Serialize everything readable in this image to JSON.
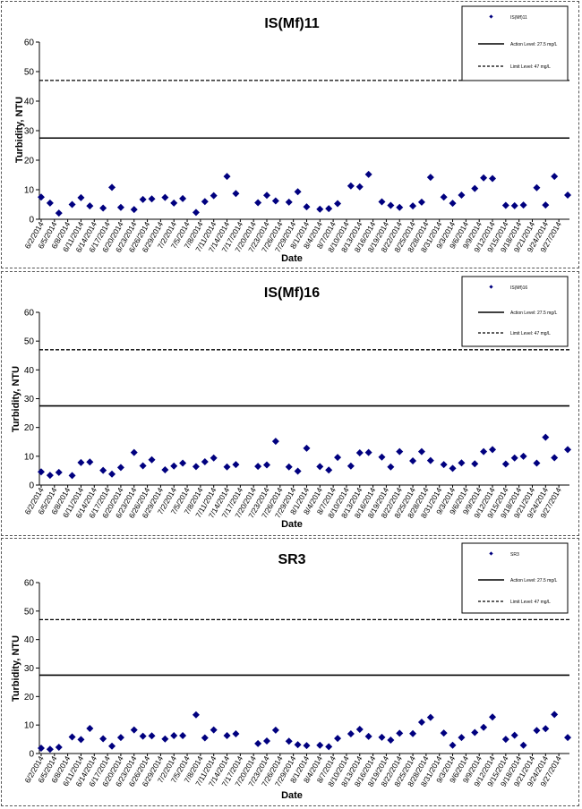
{
  "chart_data": [
    {
      "type": "scatter",
      "title": "IS(Mf)11",
      "xlabel": "Date",
      "ylabel": "Turbidity, NTU",
      "ylim": [
        0,
        60
      ],
      "yticks": [
        "0",
        "10",
        "20",
        "30",
        "40",
        "50",
        "60"
      ],
      "grid": false,
      "legend_position": "top-right",
      "x_tick_labels": [
        "6/2/2014",
        "6/5/2014",
        "6/8/2014",
        "6/11/2014",
        "6/14/2014",
        "6/17/2014",
        "6/20/2014",
        "6/23/2014",
        "6/26/2014",
        "6/29/2014",
        "7/2/2014",
        "7/5/2014",
        "7/8/2014",
        "7/11/2014",
        "7/14/2014",
        "7/17/2014",
        "7/20/2014",
        "7/23/2014",
        "7/26/2014",
        "7/29/2014",
        "8/1/2014",
        "8/4/2014",
        "8/7/2014",
        "8/10/2014",
        "8/13/2014",
        "8/16/2014",
        "8/19/2014",
        "8/22/2014",
        "8/25/2014",
        "8/28/2014",
        "8/31/2014",
        "9/3/2014",
        "9/6/2014",
        "9/9/2014",
        "9/12/2014",
        "9/15/2014",
        "9/18/2014",
        "9/21/2014",
        "9/24/2014",
        "9/27/2014"
      ],
      "series": [
        {
          "name": "IS(Mf)11",
          "kind": "points",
          "color": "#00007f",
          "points": [
            {
              "x": "6/2/2014",
              "y": 7.5
            },
            {
              "x": "6/4/2014",
              "y": 5.5
            },
            {
              "x": "6/6/2014",
              "y": 2.1
            },
            {
              "x": "6/9/2014",
              "y": 5.0
            },
            {
              "x": "6/11/2014",
              "y": 7.3
            },
            {
              "x": "6/13/2014",
              "y": 4.5
            },
            {
              "x": "6/16/2014",
              "y": 3.8
            },
            {
              "x": "6/18/2014",
              "y": 10.8
            },
            {
              "x": "6/20/2014",
              "y": 4.0
            },
            {
              "x": "6/23/2014",
              "y": 3.3
            },
            {
              "x": "6/25/2014",
              "y": 6.7
            },
            {
              "x": "6/27/2014",
              "y": 6.9
            },
            {
              "x": "6/30/2014",
              "y": 7.4
            },
            {
              "x": "7/2/2014",
              "y": 5.5
            },
            {
              "x": "7/4/2014",
              "y": 7.0
            },
            {
              "x": "7/7/2014",
              "y": 2.3
            },
            {
              "x": "7/9/2014",
              "y": 6.0
            },
            {
              "x": "7/11/2014",
              "y": 8.0
            },
            {
              "x": "7/14/2014",
              "y": 14.5
            },
            {
              "x": "7/16/2014",
              "y": 8.7
            },
            {
              "x": "7/21/2014",
              "y": 5.6
            },
            {
              "x": "7/23/2014",
              "y": 8.1
            },
            {
              "x": "7/25/2014",
              "y": 6.2
            },
            {
              "x": "7/28/2014",
              "y": 5.8
            },
            {
              "x": "7/30/2014",
              "y": 9.3
            },
            {
              "x": "8/1/2014",
              "y": 4.2
            },
            {
              "x": "8/4/2014",
              "y": 3.4
            },
            {
              "x": "8/6/2014",
              "y": 3.6
            },
            {
              "x": "8/8/2014",
              "y": 5.3
            },
            {
              "x": "8/11/2014",
              "y": 11.3
            },
            {
              "x": "8/13/2014",
              "y": 11.0
            },
            {
              "x": "8/15/2014",
              "y": 15.2
            },
            {
              "x": "8/18/2014",
              "y": 5.9
            },
            {
              "x": "8/20/2014",
              "y": 4.7
            },
            {
              "x": "8/22/2014",
              "y": 4.0
            },
            {
              "x": "8/25/2014",
              "y": 4.5
            },
            {
              "x": "8/27/2014",
              "y": 5.8
            },
            {
              "x": "8/29/2014",
              "y": 14.2
            },
            {
              "x": "9/1/2014",
              "y": 7.5
            },
            {
              "x": "9/3/2014",
              "y": 5.4
            },
            {
              "x": "9/5/2014",
              "y": 8.2
            },
            {
              "x": "9/8/2014",
              "y": 10.4
            },
            {
              "x": "9/10/2014",
              "y": 14.0
            },
            {
              "x": "9/12/2014",
              "y": 13.8
            },
            {
              "x": "9/15/2014",
              "y": 4.7
            },
            {
              "x": "9/17/2014",
              "y": 4.6
            },
            {
              "x": "9/19/2014",
              "y": 4.8
            },
            {
              "x": "9/22/2014",
              "y": 10.7
            },
            {
              "x": "9/24/2014",
              "y": 4.8
            },
            {
              "x": "9/26/2014",
              "y": 14.5
            },
            {
              "x": "9/29/2014",
              "y": 8.2
            }
          ]
        },
        {
          "name": "Action Level: 27.5 mg/L",
          "kind": "hline",
          "y": 27.5,
          "dash": "solid"
        },
        {
          "name": "Limit Level: 47 mg/L",
          "kind": "hline",
          "y": 47,
          "dash": "dashed"
        }
      ]
    },
    {
      "type": "scatter",
      "title": "IS(Mf)16",
      "xlabel": "Date",
      "ylabel": "Turbidity, NTU",
      "ylim": [
        0,
        60
      ],
      "yticks": [
        "0",
        "10",
        "20",
        "30",
        "40",
        "50",
        "60"
      ],
      "grid": false,
      "legend_position": "top-right",
      "x_tick_labels": [
        "6/2/2014",
        "6/5/2014",
        "6/8/2014",
        "6/11/2014",
        "6/14/2014",
        "6/17/2014",
        "6/20/2014",
        "6/23/2014",
        "6/26/2014",
        "6/29/2014",
        "7/2/2014",
        "7/5/2014",
        "7/8/2014",
        "7/11/2014",
        "7/14/2014",
        "7/17/2014",
        "7/20/2014",
        "7/23/2014",
        "7/26/2014",
        "7/29/2014",
        "8/1/2014",
        "8/4/2014",
        "8/7/2014",
        "8/10/2014",
        "8/13/2014",
        "8/16/2014",
        "8/19/2014",
        "8/22/2014",
        "8/25/2014",
        "8/28/2014",
        "8/31/2014",
        "9/3/2014",
        "9/6/2014",
        "9/9/2014",
        "9/12/2014",
        "9/15/2014",
        "9/18/2014",
        "9/21/2014",
        "9/24/2014",
        "9/27/2014"
      ],
      "series": [
        {
          "name": "IS(Mf)16",
          "kind": "points",
          "color": "#00007f",
          "points": [
            {
              "x": "6/2/2014",
              "y": 4.6
            },
            {
              "x": "6/4/2014",
              "y": 3.4
            },
            {
              "x": "6/6/2014",
              "y": 4.4
            },
            {
              "x": "6/9/2014",
              "y": 3.3
            },
            {
              "x": "6/11/2014",
              "y": 7.8
            },
            {
              "x": "6/13/2014",
              "y": 8.0
            },
            {
              "x": "6/16/2014",
              "y": 5.1
            },
            {
              "x": "6/18/2014",
              "y": 3.8
            },
            {
              "x": "6/20/2014",
              "y": 6.1
            },
            {
              "x": "6/23/2014",
              "y": 11.3
            },
            {
              "x": "6/25/2014",
              "y": 6.7
            },
            {
              "x": "6/27/2014",
              "y": 8.8
            },
            {
              "x": "6/30/2014",
              "y": 5.3
            },
            {
              "x": "7/2/2014",
              "y": 6.6
            },
            {
              "x": "7/4/2014",
              "y": 7.6
            },
            {
              "x": "7/7/2014",
              "y": 6.4
            },
            {
              "x": "7/9/2014",
              "y": 8.1
            },
            {
              "x": "7/11/2014",
              "y": 9.4
            },
            {
              "x": "7/14/2014",
              "y": 6.3
            },
            {
              "x": "7/16/2014",
              "y": 7.1
            },
            {
              "x": "7/21/2014",
              "y": 6.5
            },
            {
              "x": "7/23/2014",
              "y": 7.0
            },
            {
              "x": "7/25/2014",
              "y": 15.2
            },
            {
              "x": "7/28/2014",
              "y": 6.3
            },
            {
              "x": "7/30/2014",
              "y": 4.8
            },
            {
              "x": "8/1/2014",
              "y": 12.8
            },
            {
              "x": "8/4/2014",
              "y": 6.4
            },
            {
              "x": "8/6/2014",
              "y": 5.2
            },
            {
              "x": "8/8/2014",
              "y": 9.6
            },
            {
              "x": "8/11/2014",
              "y": 6.6
            },
            {
              "x": "8/13/2014",
              "y": 11.2
            },
            {
              "x": "8/15/2014",
              "y": 11.3
            },
            {
              "x": "8/18/2014",
              "y": 9.7
            },
            {
              "x": "8/20/2014",
              "y": 6.3
            },
            {
              "x": "8/22/2014",
              "y": 11.6
            },
            {
              "x": "8/25/2014",
              "y": 8.4
            },
            {
              "x": "8/27/2014",
              "y": 11.6
            },
            {
              "x": "8/29/2014",
              "y": 8.5
            },
            {
              "x": "9/1/2014",
              "y": 7.1
            },
            {
              "x": "9/3/2014",
              "y": 5.8
            },
            {
              "x": "9/5/2014",
              "y": 7.7
            },
            {
              "x": "9/8/2014",
              "y": 7.4
            },
            {
              "x": "9/10/2014",
              "y": 11.6
            },
            {
              "x": "9/12/2014",
              "y": 12.3
            },
            {
              "x": "9/15/2014",
              "y": 7.3
            },
            {
              "x": "9/17/2014",
              "y": 9.4
            },
            {
              "x": "9/19/2014",
              "y": 10.0
            },
            {
              "x": "9/22/2014",
              "y": 7.6
            },
            {
              "x": "9/24/2014",
              "y": 16.6
            },
            {
              "x": "9/26/2014",
              "y": 9.5
            },
            {
              "x": "9/29/2014",
              "y": 12.3
            }
          ]
        },
        {
          "name": "Action Level: 27.5 mg/L",
          "kind": "hline",
          "y": 27.5,
          "dash": "solid"
        },
        {
          "name": "Limit Level: 47 mg/L",
          "kind": "hline",
          "y": 47,
          "dash": "dashed"
        }
      ]
    },
    {
      "type": "scatter",
      "title": "SR3",
      "xlabel": "Date",
      "ylabel": "Turbidity, NTU",
      "ylim": [
        0,
        60
      ],
      "yticks": [
        "0",
        "10",
        "20",
        "30",
        "40",
        "50",
        "60"
      ],
      "grid": false,
      "legend_position": "top-right",
      "x_tick_labels": [
        "6/2/2014",
        "6/5/2014",
        "6/8/2014",
        "6/11/2014",
        "6/14/2014",
        "6/17/2014",
        "6/20/2014",
        "6/23/2014",
        "6/26/2014",
        "6/29/2014",
        "7/2/2014",
        "7/5/2014",
        "7/8/2014",
        "7/11/2014",
        "7/14/2014",
        "7/17/2014",
        "7/20/2014",
        "7/23/2014",
        "7/26/2014",
        "7/29/2014",
        "8/1/2014",
        "8/4/2014",
        "8/7/2014",
        "8/10/2014",
        "8/13/2014",
        "8/16/2014",
        "8/19/2014",
        "8/22/2014",
        "8/25/2014",
        "8/28/2014",
        "8/31/2014",
        "9/3/2014",
        "9/6/2014",
        "9/9/2014",
        "9/12/2014",
        "9/15/2014",
        "9/18/2014",
        "9/21/2014",
        "9/24/2014",
        "9/27/2014"
      ],
      "series": [
        {
          "name": "SR3",
          "kind": "points",
          "color": "#00007f",
          "points": [
            {
              "x": "6/2/2014",
              "y": 1.9
            },
            {
              "x": "6/4/2014",
              "y": 1.5
            },
            {
              "x": "6/6/2014",
              "y": 2.2
            },
            {
              "x": "6/9/2014",
              "y": 5.8
            },
            {
              "x": "6/11/2014",
              "y": 4.9
            },
            {
              "x": "6/13/2014",
              "y": 8.8
            },
            {
              "x": "6/16/2014",
              "y": 5.2
            },
            {
              "x": "6/18/2014",
              "y": 2.6
            },
            {
              "x": "6/20/2014",
              "y": 5.6
            },
            {
              "x": "6/23/2014",
              "y": 8.3
            },
            {
              "x": "6/25/2014",
              "y": 6.1
            },
            {
              "x": "6/27/2014",
              "y": 6.2
            },
            {
              "x": "6/30/2014",
              "y": 5.1
            },
            {
              "x": "7/2/2014",
              "y": 6.3
            },
            {
              "x": "7/4/2014",
              "y": 6.3
            },
            {
              "x": "7/7/2014",
              "y": 13.6
            },
            {
              "x": "7/9/2014",
              "y": 5.5
            },
            {
              "x": "7/11/2014",
              "y": 8.3
            },
            {
              "x": "7/14/2014",
              "y": 6.3
            },
            {
              "x": "7/16/2014",
              "y": 6.9
            },
            {
              "x": "7/21/2014",
              "y": 3.5
            },
            {
              "x": "7/23/2014",
              "y": 4.4
            },
            {
              "x": "7/25/2014",
              "y": 8.2
            },
            {
              "x": "7/28/2014",
              "y": 4.3
            },
            {
              "x": "7/30/2014",
              "y": 3.1
            },
            {
              "x": "8/1/2014",
              "y": 2.8
            },
            {
              "x": "8/4/2014",
              "y": 2.9
            },
            {
              "x": "8/6/2014",
              "y": 2.4
            },
            {
              "x": "8/8/2014",
              "y": 5.3
            },
            {
              "x": "8/11/2014",
              "y": 6.9
            },
            {
              "x": "8/13/2014",
              "y": 8.5
            },
            {
              "x": "8/15/2014",
              "y": 6.0
            },
            {
              "x": "8/18/2014",
              "y": 5.7
            },
            {
              "x": "8/20/2014",
              "y": 4.7
            },
            {
              "x": "8/22/2014",
              "y": 7.1
            },
            {
              "x": "8/25/2014",
              "y": 7.0
            },
            {
              "x": "8/27/2014",
              "y": 11.0
            },
            {
              "x": "8/29/2014",
              "y": 12.7
            },
            {
              "x": "9/1/2014",
              "y": 7.2
            },
            {
              "x": "9/3/2014",
              "y": 2.9
            },
            {
              "x": "9/5/2014",
              "y": 5.6
            },
            {
              "x": "9/8/2014",
              "y": 7.4
            },
            {
              "x": "9/10/2014",
              "y": 9.2
            },
            {
              "x": "9/12/2014",
              "y": 12.8
            },
            {
              "x": "9/15/2014",
              "y": 5.0
            },
            {
              "x": "9/17/2014",
              "y": 6.4
            },
            {
              "x": "9/19/2014",
              "y": 2.9
            },
            {
              "x": "9/22/2014",
              "y": 8.1
            },
            {
              "x": "9/24/2014",
              "y": 8.7
            },
            {
              "x": "9/26/2014",
              "y": 13.7
            },
            {
              "x": "9/29/2014",
              "y": 5.6
            }
          ]
        },
        {
          "name": "Action Level: 27.5 mg/L",
          "kind": "hline",
          "y": 27.5,
          "dash": "solid"
        },
        {
          "name": "Limit Level: 47 mg/L",
          "kind": "hline",
          "y": 47,
          "dash": "dashed"
        }
      ]
    }
  ]
}
